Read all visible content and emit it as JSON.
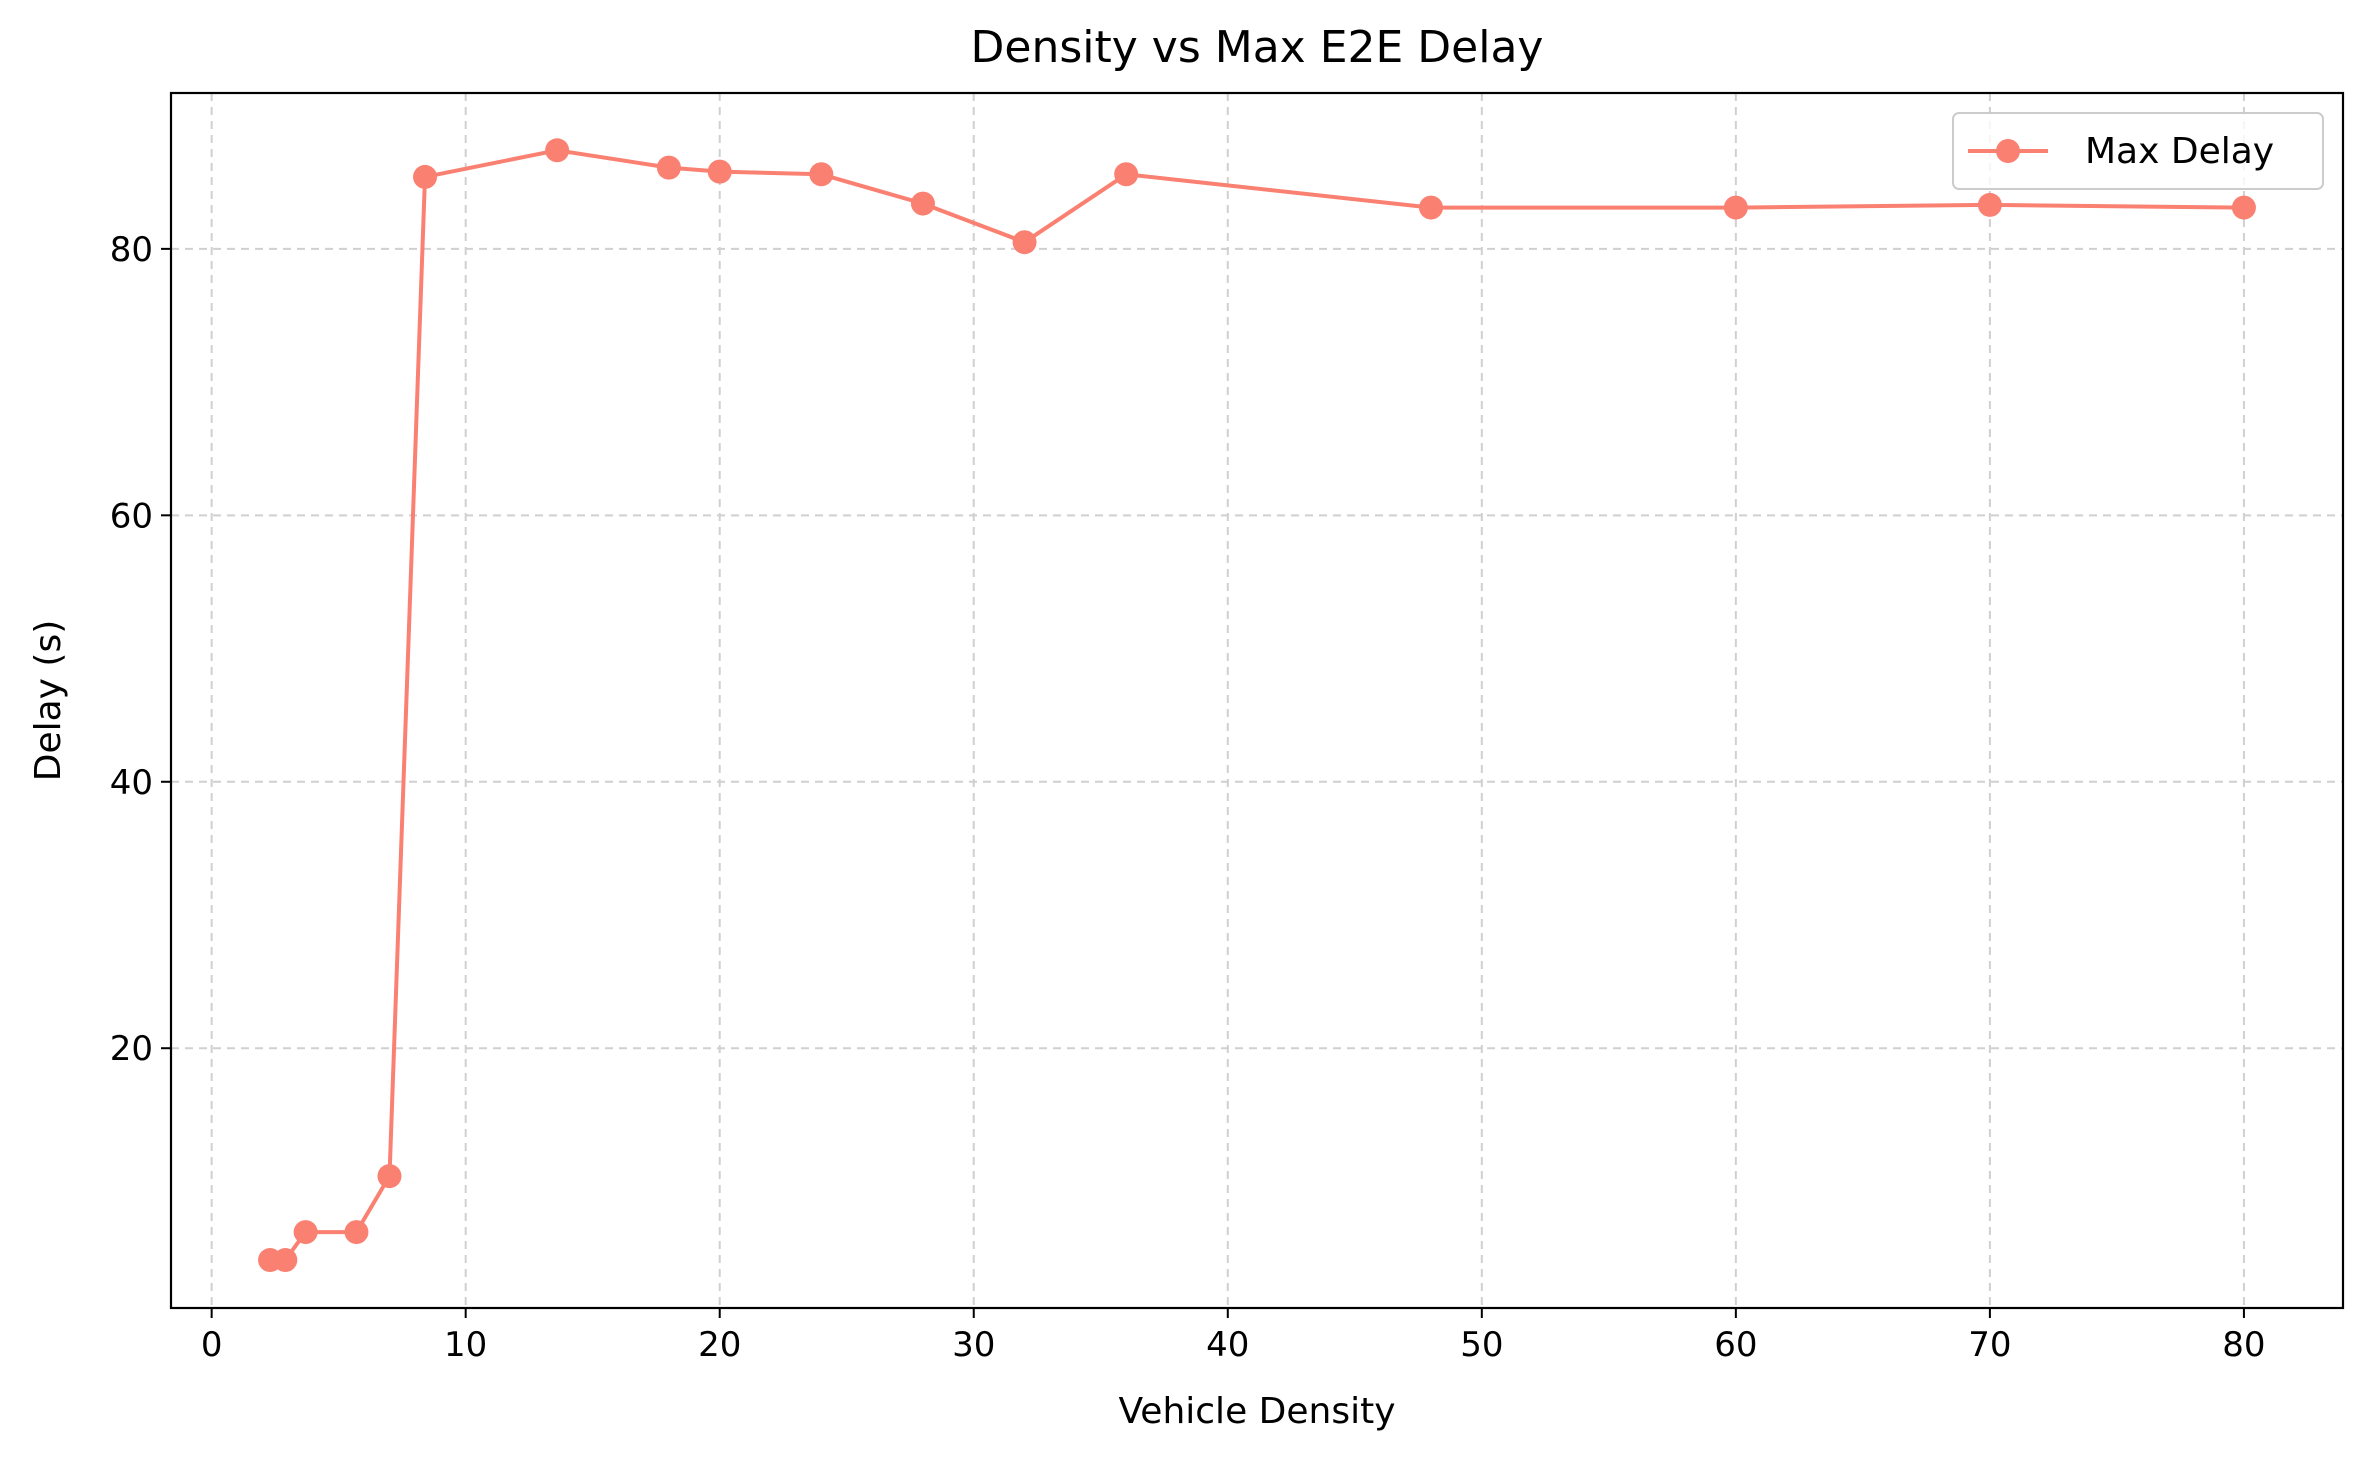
{
  "chart_data": {
    "type": "line",
    "title": "Density vs Max E2E Delay",
    "xlabel": "Vehicle Density",
    "ylabel": "Delay (s)",
    "xlim": [
      -1.6,
      83.9
    ],
    "ylim": [
      0.5,
      91.7
    ],
    "xticks": [
      0,
      10,
      20,
      30,
      40,
      50,
      60,
      70,
      80
    ],
    "yticks": [
      20,
      40,
      60,
      80
    ],
    "grid": true,
    "legend_position": "top-right",
    "color": "#fa8072",
    "series": [
      {
        "name": "Max Delay",
        "x": [
          2.3,
          2.9,
          3.7,
          5.7,
          7.0,
          8.4,
          13.6,
          18.0,
          20.0,
          24.0,
          28.0,
          32.0,
          36.0,
          48.0,
          60.0,
          70.0,
          80.0
        ],
        "y": [
          4.1,
          4.1,
          6.2,
          6.2,
          10.4,
          85.4,
          87.4,
          86.1,
          85.8,
          85.6,
          83.4,
          80.5,
          85.6,
          83.1,
          83.1,
          83.3,
          83.1
        ]
      }
    ]
  }
}
